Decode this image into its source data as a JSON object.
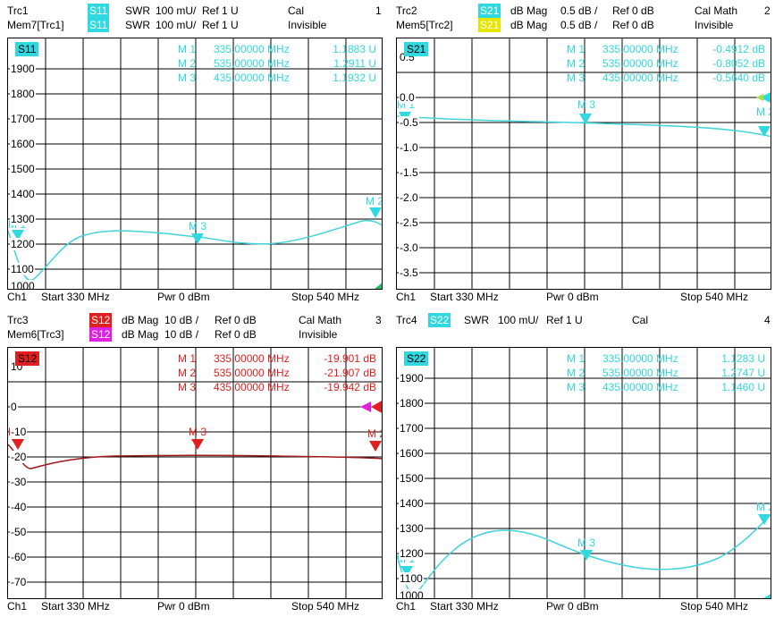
{
  "colors": {
    "cyan": "#30d8e0",
    "cyan_line": "#40d4dc",
    "yellow": "#e6e600",
    "red": "#e02020",
    "dark_red": "#b02020",
    "magenta": "#e020e0",
    "trace_dark_red": "#a01818"
  },
  "panels": [
    {
      "id": "p1",
      "trace": "Trc1",
      "badge": "S11",
      "format": "SWR",
      "scale": "100 mU/",
      "ref": "Ref 1 U",
      "cal": "Cal",
      "num": "1",
      "mem": "Mem7[Trc1]",
      "mem_badge": "S11",
      "mem_format": "SWR",
      "mem_scale": "100 mU/",
      "mem_ref": "Ref 1 U",
      "mem_state": "Invisible",
      "tag": "S11",
      "ylabels": [
        "1900",
        "1800",
        "1700",
        "1600",
        "1500",
        "1400",
        "1300",
        "1200",
        "1100",
        "1000"
      ],
      "markers": [
        {
          "name": "M 1",
          "freq": "335.00000 MHz",
          "val": "1.1883  U"
        },
        {
          "name": "M 2",
          "freq": "535.00000 MHz",
          "val": "1.2911  U"
        },
        {
          "name": "M 3",
          "freq": "435.00000 MHz",
          "val": "1.1932  U"
        }
      ],
      "footer": {
        "ch": "Ch1",
        "start": "Start  330 MHz",
        "pwr": "Pwr  0 dBm",
        "stop": "Stop  540 MHz"
      }
    },
    {
      "id": "p2",
      "trace": "Trc2",
      "badge": "S21",
      "format": "dB Mag",
      "scale": "0.5 dB /",
      "ref": "Ref 0 dB",
      "cal": "Cal Math",
      "num": "2",
      "mem": "Mem5[Trc2]",
      "mem_badge": "S21",
      "mem_format": "dB Mag",
      "mem_scale": "0.5 dB /",
      "mem_ref": "Ref 0 dB",
      "mem_state": "Invisible",
      "tag": "S21",
      "ylabels": [
        "0.5",
        "0.0",
        "-0.5",
        "-1.0",
        "-1.5",
        "-2.0",
        "-2.5",
        "-3.0",
        "-3.5"
      ],
      "markers": [
        {
          "name": "M 1",
          "freq": "335.00000 MHz",
          "val": "-0.4912  dB"
        },
        {
          "name": "M 2",
          "freq": "535.00000 MHz",
          "val": "-0.8052  dB"
        },
        {
          "name": "M 3",
          "freq": "435.00000 MHz",
          "val": "-0.5640  dB"
        }
      ],
      "footer": {
        "ch": "Ch1",
        "start": "Start  330 MHz",
        "pwr": "Pwr  0 dBm",
        "stop": "Stop  540 MHz"
      }
    },
    {
      "id": "p3",
      "trace": "Trc3",
      "badge": "S12",
      "format": "dB Mag",
      "scale": "10 dB /",
      "ref": "Ref 0 dB",
      "cal": "Cal Math",
      "num": "3",
      "mem": "Mem6[Trc3]",
      "mem_badge": "S12",
      "mem_format": "dB Mag",
      "mem_scale": "10 dB /",
      "mem_ref": "Ref 0 dB",
      "mem_state": "Invisible",
      "tag": "S12",
      "ylabels": [
        "10",
        "0",
        "-10",
        "-20",
        "-30",
        "-40",
        "-50",
        "-60",
        "-70"
      ],
      "markers": [
        {
          "name": "M 1",
          "freq": "335.00000 MHz",
          "val": "-19.901  dB"
        },
        {
          "name": "M 2",
          "freq": "535.00000 MHz",
          "val": "-21.907  dB"
        },
        {
          "name": "M 3",
          "freq": "435.00000 MHz",
          "val": "-19.942  dB"
        }
      ],
      "footer": {
        "ch": "Ch1",
        "start": "Start  330 MHz",
        "pwr": "Pwr  0 dBm",
        "stop": "Stop  540 MHz"
      }
    },
    {
      "id": "p4",
      "trace": "Trc4",
      "badge": "S22",
      "format": "SWR",
      "scale": "100 mU/",
      "ref": "Ref 1 U",
      "cal": "Cal",
      "num": "4",
      "tag": "S22",
      "ylabels": [
        "1900",
        "1800",
        "1700",
        "1600",
        "1500",
        "1400",
        "1300",
        "1200",
        "1100",
        "1000"
      ],
      "markers": [
        {
          "name": "M 1",
          "freq": "335.00000 MHz",
          "val": "1.1283  U"
        },
        {
          "name": "M 2",
          "freq": "535.00000 MHz",
          "val": "1.2747  U"
        },
        {
          "name": "M 3",
          "freq": "435.00000 MHz",
          "val": "1.1460  U"
        }
      ],
      "footer": {
        "ch": "Ch1",
        "start": "Start  330 MHz",
        "pwr": "Pwr  0 dBm",
        "stop": "Stop  540 MHz"
      }
    }
  ],
  "marker_labels": [
    "M 1",
    "M 2",
    "M 3"
  ]
}
